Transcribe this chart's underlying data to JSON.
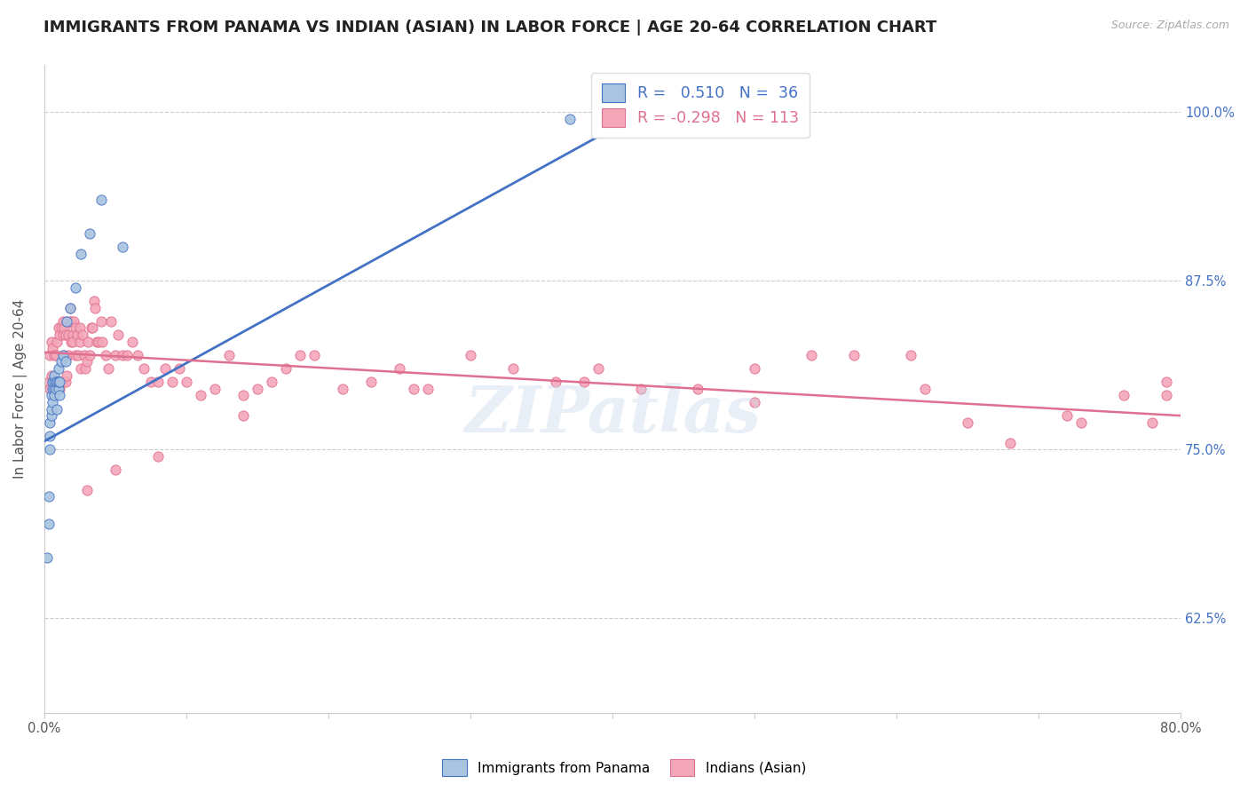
{
  "title": "IMMIGRANTS FROM PANAMA VS INDIAN (ASIAN) IN LABOR FORCE | AGE 20-64 CORRELATION CHART",
  "source": "Source: ZipAtlas.com",
  "ylabel": "In Labor Force | Age 20-64",
  "ytick_labels": [
    "62.5%",
    "75.0%",
    "87.5%",
    "100.0%"
  ],
  "ytick_values": [
    0.625,
    0.75,
    0.875,
    1.0
  ],
  "xlim": [
    0.0,
    0.8
  ],
  "ylim": [
    0.555,
    1.035
  ],
  "legend_r_blue": "0.510",
  "legend_n_blue": "36",
  "legend_r_pink": "-0.298",
  "legend_n_pink": "113",
  "legend_label_blue": "Immigrants from Panama",
  "legend_label_pink": "Indians (Asian)",
  "watermark": "ZIPatlas",
  "blue_scatter_x": [
    0.002,
    0.003,
    0.003,
    0.004,
    0.004,
    0.004,
    0.005,
    0.005,
    0.005,
    0.006,
    0.006,
    0.006,
    0.007,
    0.007,
    0.007,
    0.007,
    0.008,
    0.008,
    0.009,
    0.009,
    0.01,
    0.01,
    0.01,
    0.011,
    0.011,
    0.012,
    0.013,
    0.015,
    0.016,
    0.018,
    0.022,
    0.026,
    0.032,
    0.04,
    0.055,
    0.37
  ],
  "blue_scatter_y": [
    0.67,
    0.695,
    0.715,
    0.75,
    0.76,
    0.77,
    0.775,
    0.78,
    0.79,
    0.785,
    0.795,
    0.8,
    0.795,
    0.8,
    0.805,
    0.79,
    0.795,
    0.8,
    0.78,
    0.8,
    0.795,
    0.8,
    0.81,
    0.79,
    0.8,
    0.815,
    0.82,
    0.815,
    0.845,
    0.855,
    0.87,
    0.895,
    0.91,
    0.935,
    0.9,
    0.995
  ],
  "pink_scatter_x": [
    0.003,
    0.004,
    0.004,
    0.005,
    0.005,
    0.006,
    0.006,
    0.007,
    0.007,
    0.008,
    0.008,
    0.009,
    0.009,
    0.01,
    0.01,
    0.011,
    0.011,
    0.012,
    0.012,
    0.013,
    0.013,
    0.013,
    0.014,
    0.014,
    0.015,
    0.015,
    0.016,
    0.016,
    0.017,
    0.017,
    0.018,
    0.018,
    0.019,
    0.019,
    0.02,
    0.02,
    0.021,
    0.022,
    0.022,
    0.023,
    0.024,
    0.025,
    0.025,
    0.026,
    0.027,
    0.028,
    0.029,
    0.03,
    0.031,
    0.032,
    0.033,
    0.034,
    0.035,
    0.036,
    0.037,
    0.038,
    0.04,
    0.041,
    0.043,
    0.045,
    0.047,
    0.05,
    0.052,
    0.055,
    0.058,
    0.062,
    0.066,
    0.07,
    0.075,
    0.08,
    0.085,
    0.09,
    0.095,
    0.1,
    0.11,
    0.12,
    0.13,
    0.14,
    0.15,
    0.16,
    0.17,
    0.18,
    0.19,
    0.21,
    0.23,
    0.25,
    0.27,
    0.3,
    0.33,
    0.36,
    0.39,
    0.42,
    0.46,
    0.5,
    0.54,
    0.57,
    0.61,
    0.65,
    0.68,
    0.73,
    0.76,
    0.79,
    0.79,
    0.14,
    0.26,
    0.38,
    0.5,
    0.62,
    0.72,
    0.78,
    0.03,
    0.05,
    0.08
  ],
  "pink_scatter_y": [
    0.8,
    0.795,
    0.82,
    0.805,
    0.83,
    0.8,
    0.825,
    0.795,
    0.82,
    0.8,
    0.82,
    0.795,
    0.83,
    0.8,
    0.84,
    0.795,
    0.835,
    0.8,
    0.84,
    0.8,
    0.835,
    0.845,
    0.82,
    0.84,
    0.8,
    0.835,
    0.805,
    0.845,
    0.82,
    0.835,
    0.845,
    0.855,
    0.83,
    0.845,
    0.835,
    0.83,
    0.845,
    0.82,
    0.84,
    0.835,
    0.82,
    0.83,
    0.84,
    0.81,
    0.835,
    0.82,
    0.81,
    0.815,
    0.83,
    0.82,
    0.84,
    0.84,
    0.86,
    0.855,
    0.83,
    0.83,
    0.845,
    0.83,
    0.82,
    0.81,
    0.845,
    0.82,
    0.835,
    0.82,
    0.82,
    0.83,
    0.82,
    0.81,
    0.8,
    0.8,
    0.81,
    0.8,
    0.81,
    0.8,
    0.79,
    0.795,
    0.82,
    0.79,
    0.795,
    0.8,
    0.81,
    0.82,
    0.82,
    0.795,
    0.8,
    0.81,
    0.795,
    0.82,
    0.81,
    0.8,
    0.81,
    0.795,
    0.795,
    0.81,
    0.82,
    0.82,
    0.82,
    0.77,
    0.755,
    0.77,
    0.79,
    0.8,
    0.79,
    0.775,
    0.795,
    0.8,
    0.785,
    0.795,
    0.775,
    0.77,
    0.72,
    0.735,
    0.745
  ],
  "blue_line_x": [
    0.0,
    0.43
  ],
  "blue_line_y": [
    0.756,
    1.005
  ],
  "pink_line_x": [
    0.0,
    0.8
  ],
  "pink_line_y": [
    0.822,
    0.775
  ],
  "scatter_blue_color": "#a8c4e0",
  "scatter_pink_color": "#f4a7b9",
  "line_blue_color": "#4472c4",
  "line_pink_color": "#e07090",
  "grid_color": "#cccccc",
  "background_color": "#ffffff",
  "right_axis_color": "#4472c4",
  "title_fontsize": 13,
  "axis_label_fontsize": 11,
  "tick_fontsize": 10.5
}
